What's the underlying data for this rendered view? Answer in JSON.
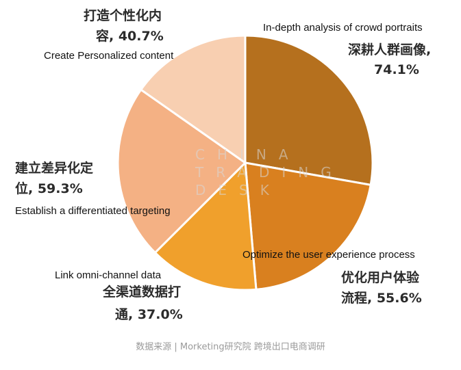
{
  "chart_data": {
    "type": "pie",
    "title": "",
    "slices": [
      {
        "label_cn": "深耕人群画像,",
        "value_text": "74.1%",
        "label_en": "In-depth analysis of crowd portraits",
        "value": 74.1,
        "color": "#b5701e"
      },
      {
        "label_cn": "优化用户体验",
        "label_cn2": "流程, 55.6%",
        "label_en": "Optimize the user experience process",
        "value": 55.6,
        "color": "#d9801f"
      },
      {
        "label_cn": "全渠道数据打",
        "label_cn2": "通, 37.0%",
        "label_en": "Link omni-channel data",
        "value": 37.0,
        "color": "#f0a02c"
      },
      {
        "label_cn": "建立差异化定",
        "label_cn2": "位, 59.3%",
        "label_en": "Establish a differentiated targeting",
        "value": 59.3,
        "color": "#f4b184"
      },
      {
        "label_cn": "打造个性化内",
        "label_cn2": "容, 40.7%",
        "label_en": "Create Personalized content",
        "value": 40.7,
        "color": "#f8cfb1"
      }
    ]
  },
  "watermark": {
    "line1": "CHINA",
    "line2": "TRADING",
    "line3": "DESK"
  },
  "source": "数据来源 | Morketing研究院 跨境出口电商调研"
}
